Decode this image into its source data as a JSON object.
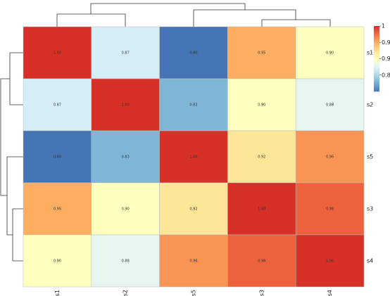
{
  "chart_data": {
    "type": "heatmap",
    "rows": [
      "s1",
      "s2",
      "s5",
      "s3",
      "s4"
    ],
    "columns": [
      "s1",
      "s2",
      "s5",
      "s3",
      "s4"
    ],
    "values": [
      [
        1,
        0.87,
        0.8,
        0.95,
        0.9
      ],
      [
        0.87,
        1,
        0.83,
        0.9,
        0.88
      ],
      [
        0.8,
        0.83,
        1,
        0.92,
        0.96
      ],
      [
        0.95,
        0.9,
        0.92,
        1,
        0.98
      ],
      [
        0.9,
        0.88,
        0.96,
        0.98,
        1
      ]
    ],
    "value_labels": [
      [
        "1.00",
        "0.87",
        "0.80",
        "0.95",
        "0.90"
      ],
      [
        "0.87",
        "1.00",
        "0.83",
        "0.90",
        "0.88"
      ],
      [
        "0.80",
        "0.83",
        "1.00",
        "0.92",
        "0.96"
      ],
      [
        "0.95",
        "0.90",
        "0.92",
        "1.00",
        "0.98"
      ],
      [
        "0.90",
        "0.88",
        "0.96",
        "0.98",
        "1.00"
      ]
    ],
    "colormap": "RdYlBu_r",
    "clim": [
      0.8,
      1
    ],
    "cticks": [
      1,
      0.95,
      0.9,
      0.85
    ]
  }
}
